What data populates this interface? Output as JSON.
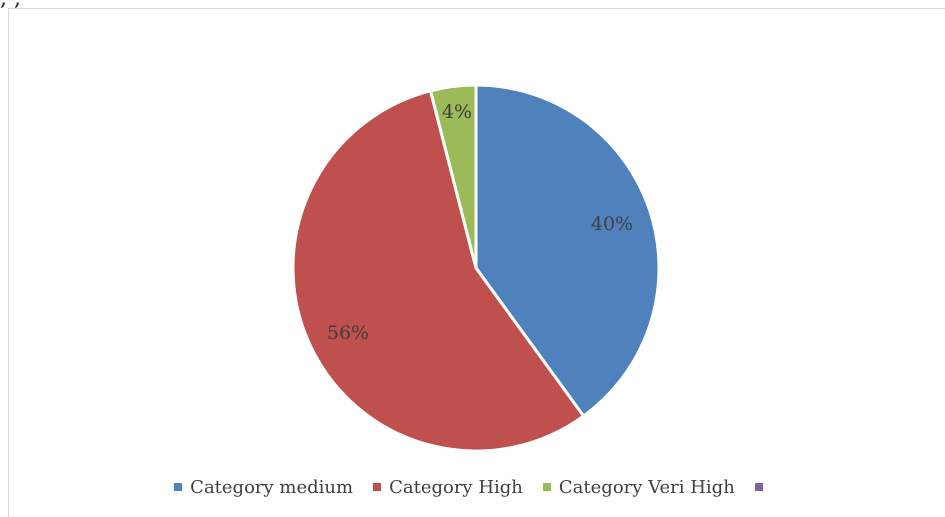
{
  "header_fragment": {
    "text": ", ,"
  },
  "chart_data": {
    "type": "pie",
    "title": "",
    "start_angle_deg": 0,
    "direction": "clockwise",
    "slices": [
      {
        "name": "Category medium",
        "value": 40,
        "label": "40%",
        "color": "#4F81BD"
      },
      {
        "name": "Category High",
        "value": 56,
        "label": "56%",
        "color": "#C0504D"
      },
      {
        "name": "Category Veri High",
        "value": 4,
        "label": "4%",
        "color": "#9BBB59"
      }
    ],
    "legend": {
      "position": "bottom",
      "items": [
        {
          "label": "Category medium",
          "color": "#4F81BD"
        },
        {
          "label": "Category High",
          "color": "#C0504D"
        },
        {
          "label": "Category Veri High",
          "color": "#9BBB59"
        },
        {
          "label": "",
          "color": "#8064A2"
        }
      ]
    }
  }
}
